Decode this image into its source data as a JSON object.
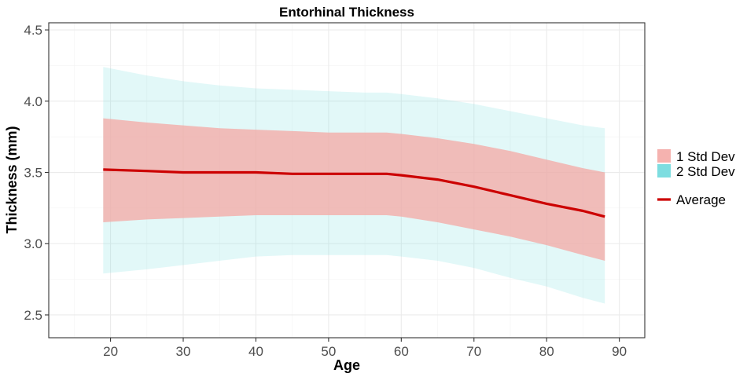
{
  "chart_data": {
    "type": "area",
    "title": "Entorhinal Thickness",
    "xlabel": "Age",
    "ylabel": "Thickness (mm)",
    "xlim": [
      11.5,
      93.5
    ],
    "ylim": [
      2.34,
      4.55
    ],
    "x_ticks": [
      20,
      30,
      40,
      50,
      60,
      70,
      80,
      90
    ],
    "y_ticks": [
      2.5,
      3.0,
      3.5,
      4.0,
      4.5
    ],
    "x_tick_labels": [
      "20",
      "30",
      "40",
      "50",
      "60",
      "70",
      "80",
      "90"
    ],
    "y_tick_labels": [
      "2.5",
      "3.0",
      "3.5",
      "4.0",
      "4.5"
    ],
    "grid": true,
    "legend_position": "right",
    "x": [
      19,
      25,
      30,
      35,
      40,
      45,
      50,
      55,
      58,
      60,
      65,
      70,
      75,
      80,
      85,
      88
    ],
    "series": [
      {
        "name": "2 Std Dev",
        "kind": "band",
        "color": "#7ddde0",
        "upper": [
          4.24,
          4.18,
          4.14,
          4.11,
          4.09,
          4.08,
          4.07,
          4.06,
          4.06,
          4.05,
          4.02,
          3.98,
          3.93,
          3.88,
          3.83,
          3.81
        ],
        "lower": [
          2.79,
          2.82,
          2.85,
          2.88,
          2.91,
          2.92,
          2.92,
          2.92,
          2.92,
          2.91,
          2.88,
          2.83,
          2.76,
          2.7,
          2.62,
          2.58
        ]
      },
      {
        "name": "1 Std Dev",
        "kind": "band",
        "color": "#f4aaa6",
        "upper": [
          3.88,
          3.85,
          3.83,
          3.81,
          3.8,
          3.79,
          3.78,
          3.78,
          3.78,
          3.77,
          3.74,
          3.7,
          3.65,
          3.59,
          3.53,
          3.5
        ],
        "lower": [
          3.15,
          3.17,
          3.18,
          3.19,
          3.2,
          3.2,
          3.2,
          3.2,
          3.2,
          3.19,
          3.15,
          3.1,
          3.05,
          2.99,
          2.92,
          2.88
        ]
      },
      {
        "name": "Average",
        "kind": "line",
        "color": "#cc0000",
        "values": [
          3.52,
          3.51,
          3.5,
          3.5,
          3.5,
          3.49,
          3.49,
          3.49,
          3.49,
          3.48,
          3.45,
          3.4,
          3.34,
          3.28,
          3.23,
          3.19
        ]
      }
    ],
    "legend": [
      {
        "label": "1 Std Dev",
        "kind": "fill",
        "color": "#f4aaa6"
      },
      {
        "label": "2 Std Dev",
        "kind": "fill",
        "color": "#7ddde0"
      },
      {
        "label": "Average",
        "kind": "line",
        "color": "#cc0000"
      }
    ]
  }
}
